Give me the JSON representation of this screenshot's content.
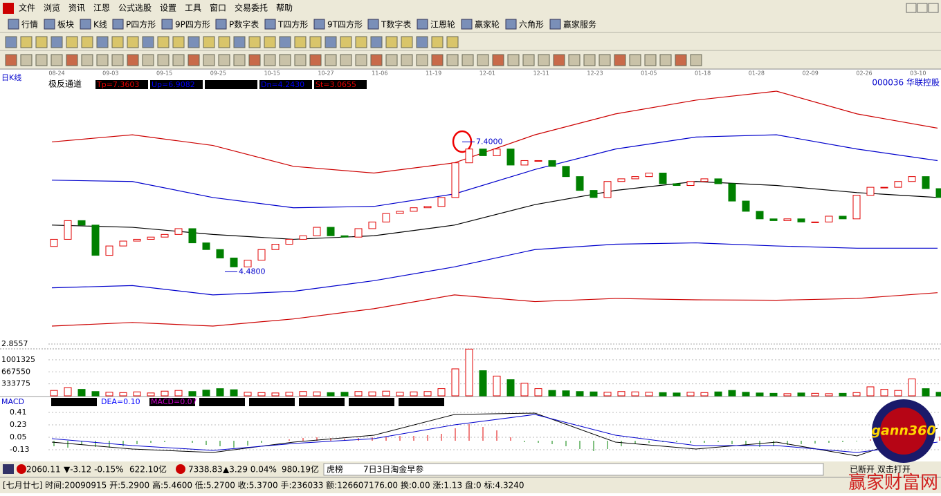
{
  "menu": [
    "文件",
    "浏览",
    "资讯",
    "江恩",
    "公式选股",
    "设置",
    "工具",
    "窗口",
    "交易委托",
    "帮助"
  ],
  "toolbar": [
    "行情",
    "板块",
    "K线",
    "P四方形",
    "9P四方形",
    "P数字表",
    "T四方形",
    "9T四方形",
    "T数字表",
    "江恩轮",
    "赢家轮",
    "六角形",
    "赢家服务"
  ],
  "chart": {
    "period": "日K线",
    "indicator": "极反通道",
    "params": [
      "Tp=7.3603",
      "Up=6.9082",
      "Dn=4.2430",
      "St=3.0655"
    ],
    "stock": "000036 华联控股",
    "dates": [
      "08-24",
      "09-03",
      "09-15",
      "09-25",
      "10-15",
      "10-27",
      "11-06",
      "11-19",
      "12-01",
      "12-11",
      "12-23",
      "01-05",
      "01-18",
      "01-28",
      "02-09",
      "02-26",
      "03-10"
    ],
    "price_ylim": [
      2.8557,
      8.96
    ],
    "price_yticks": [
      2.8557
    ],
    "price_marks": [
      {
        "value": 7.4,
        "label": "7.4000"
      },
      {
        "value": 4.48,
        "label": "4.4800"
      }
    ],
    "open": [
      5.05,
      5.21,
      5.63,
      5.53,
      4.85,
      5.06,
      5.17,
      5.21,
      5.26,
      5.32,
      5.45,
      5.13,
      4.98,
      4.79,
      4.59,
      4.74,
      4.98,
      5.1,
      5.21,
      5.29,
      5.48,
      5.29,
      5.26,
      5.45,
      5.6,
      5.79,
      5.84,
      5.92,
      5.95,
      6.15,
      6.93,
      7.24,
      7.09,
      7.24,
      6.88,
      6.98,
      6.98,
      6.85,
      6.62,
      6.31,
      6.15,
      6.51,
      6.57,
      6.62,
      6.7,
      6.46,
      6.42,
      6.51,
      6.57,
      6.46,
      6.07,
      5.84,
      5.67,
      5.63,
      5.67,
      5.6,
      5.6,
      5.73,
      5.67,
      6.2,
      6.38,
      6.38,
      6.51,
      6.62,
      6.35
    ],
    "close": [
      5.21,
      5.63,
      5.53,
      4.85,
      5.06,
      5.17,
      5.21,
      5.26,
      5.32,
      5.45,
      5.13,
      4.98,
      4.79,
      4.59,
      4.74,
      4.98,
      5.1,
      5.21,
      5.29,
      5.48,
      5.29,
      5.26,
      5.45,
      5.6,
      5.79,
      5.84,
      5.92,
      5.95,
      6.15,
      6.93,
      7.24,
      7.09,
      7.24,
      6.88,
      6.98,
      6.98,
      6.85,
      6.62,
      6.31,
      6.15,
      6.51,
      6.57,
      6.62,
      6.7,
      6.46,
      6.42,
      6.51,
      6.57,
      6.46,
      6.07,
      5.84,
      5.67,
      5.63,
      5.67,
      5.6,
      5.6,
      5.73,
      5.67,
      6.2,
      6.38,
      6.38,
      6.51,
      6.62,
      6.35,
      6.15
    ],
    "bands": [
      {
        "color": "#cc0000",
        "values": [
          7.4,
          7.56,
          7.32,
          6.85,
          6.7,
          6.93,
          7.56,
          8.03,
          8.34,
          8.54,
          8.03,
          7.71
        ]
      },
      {
        "color": "#0000cc",
        "values": [
          6.54,
          6.51,
          6.15,
          5.92,
          5.95,
          6.23,
          6.78,
          7.24,
          7.51,
          7.56,
          7.24,
          6.98
        ]
      },
      {
        "color": "#000000",
        "values": [
          5.53,
          5.48,
          5.32,
          5.21,
          5.29,
          5.53,
          5.99,
          6.31,
          6.51,
          6.42,
          6.26,
          6.15
        ]
      },
      {
        "color": "#0000cc",
        "values": [
          4.12,
          4.17,
          3.96,
          4.04,
          4.28,
          4.59,
          4.98,
          5.1,
          5.13,
          5.06,
          5.01,
          5.01
        ]
      },
      {
        "color": "#cc0000",
        "values": [
          3.26,
          3.34,
          3.26,
          3.42,
          3.65,
          3.96,
          3.81,
          3.88,
          3.85,
          3.84,
          3.88,
          4.01
        ]
      }
    ],
    "volume": [
      150000,
      230000,
      180000,
      120000,
      100000,
      90000,
      110000,
      80000,
      130000,
      150000,
      120000,
      160000,
      200000,
      170000,
      100000,
      90000,
      80000,
      100000,
      120000,
      110000,
      90000,
      100000,
      120000,
      110000,
      130000,
      100000,
      110000,
      120000,
      200000,
      750000,
      1300000,
      700000,
      550000,
      450000,
      350000,
      200000,
      150000,
      140000,
      120000,
      110000,
      100000,
      120000,
      110000,
      100000,
      90000,
      80000,
      100000,
      90000,
      110000,
      150000,
      100000,
      80000,
      70000,
      60000,
      80000,
      70000,
      60000,
      70000,
      90000,
      250000,
      180000,
      150000,
      470000,
      200000,
      100000
    ],
    "volume_ylim": [
      0,
      1306500
    ],
    "volume_yticks": [
      333775,
      667550,
      1001325
    ],
    "macd_title": "MACD",
    "macd_params": [
      "DEA=0.10",
      "MACD=0.07"
    ],
    "macd_ylim": [
      -0.3,
      0.48
    ],
    "macd_yticks": [
      0.41,
      0.23,
      0.05,
      -0.13
    ],
    "macd": [
      -0.08,
      -0.1,
      -0.06,
      -0.09,
      -0.1,
      -0.08,
      -0.05,
      -0.03,
      -0.02,
      0.0,
      -0.03,
      -0.06,
      -0.08,
      -0.1,
      -0.07,
      -0.03,
      0.0,
      0.02,
      0.04,
      0.05,
      0.04,
      0.03,
      0.04,
      0.05,
      0.06,
      0.07,
      0.07,
      0.08,
      0.1,
      0.18,
      0.24,
      0.2,
      0.15,
      0.05,
      -0.02,
      -0.03,
      -0.05,
      -0.08,
      -0.12,
      -0.15,
      -0.12,
      -0.08,
      -0.05,
      -0.03,
      -0.02,
      -0.02,
      -0.03,
      -0.03,
      -0.02,
      -0.05,
      -0.07,
      -0.09,
      -0.08,
      -0.06,
      -0.05,
      -0.04,
      -0.03,
      -0.02,
      -0.01,
      0.02,
      0.04,
      0.06,
      0.1,
      0.08,
      0.06
    ],
    "dif": [
      -0.02,
      -0.12,
      -0.17,
      -0.02,
      0.08,
      0.38,
      0.4,
      -0.02,
      -0.12,
      -0.02,
      -0.22,
      0.18
    ],
    "dea": [
      0.03,
      -0.07,
      -0.14,
      -0.04,
      0.03,
      0.23,
      0.38,
      0.08,
      -0.07,
      -0.07,
      -0.17,
      -0.02
    ]
  },
  "status": {
    "sh_index": "2060.11",
    "sh_change": "▼-3.12 -0.15%",
    "sh_amount": "622.10亿",
    "sz_index": "7338.83",
    "sz_change": "▲3.29 0.04%",
    "sz_amount": "980.19亿",
    "news1": "虎榜",
    "news2": "7日3日淘金早参",
    "connection": "已断开 双击打开",
    "detail": "[七月廿七] 时间:20090915 开:5.2900 高:5.4600 低:5.2700 收:5.3700 手:236033 额:126607176.00 换:0.00 涨:1.13 盘:0 标:4.3240"
  },
  "logo": "gann360",
  "watermark": "赢家财富网"
}
